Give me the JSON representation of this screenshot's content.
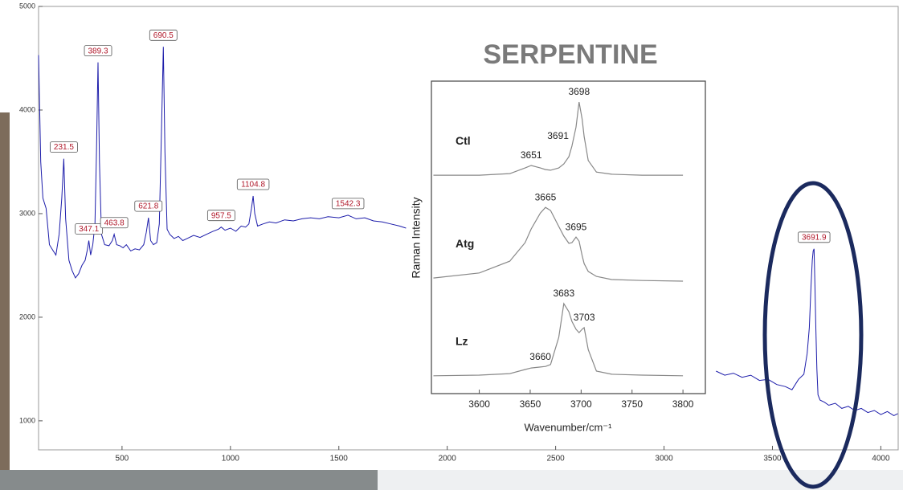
{
  "chart_data": [
    {
      "type": "line",
      "x": [
        115,
        125,
        135,
        150,
        165,
        180,
        195,
        210,
        222,
        231.5,
        240,
        255,
        270,
        285,
        300,
        315,
        330,
        340,
        347.1,
        355,
        365,
        375,
        382,
        389.3,
        396,
        405,
        420,
        440,
        455,
        463.8,
        475,
        490,
        505,
        520,
        540,
        560,
        580,
        600,
        612,
        621.8,
        632,
        645,
        660,
        672,
        682,
        690.5,
        698,
        708,
        720,
        740,
        760,
        780,
        800,
        830,
        860,
        890,
        920,
        945,
        957.5,
        975,
        1000,
        1025,
        1050,
        1070,
        1085,
        1097,
        1104.8,
        1112,
        1125,
        1150,
        1180,
        1210,
        1250,
        1290,
        1330,
        1370,
        1410,
        1450,
        1500,
        1542.3,
        1580,
        1620,
        1660,
        1700,
        1740,
        1780,
        1810,
        2500,
        3240,
        3280,
        3320,
        3360,
        3400,
        3440,
        3480,
        3520,
        3560,
        3590,
        3620,
        3645,
        3660,
        3670,
        3678,
        3684,
        3688,
        3691.9,
        3696,
        3700,
        3705,
        3710,
        3720,
        3740,
        3760,
        3790,
        3820,
        3850,
        3880,
        3910,
        3940,
        3970,
        4000,
        4030,
        4060,
        4078
      ],
      "series": [
        {
          "color": "#1c1caa",
          "values": [
            4530,
            3500,
            3150,
            3050,
            2700,
            2650,
            2600,
            2800,
            3150,
            3530,
            2950,
            2550,
            2450,
            2380,
            2420,
            2500,
            2550,
            2650,
            2740,
            2600,
            2700,
            2900,
            3600,
            4460,
            3500,
            2800,
            2700,
            2690,
            2740,
            2800,
            2700,
            2690,
            2670,
            2700,
            2640,
            2660,
            2650,
            2700,
            2820,
            2960,
            2740,
            2700,
            2720,
            2900,
            3800,
            4610,
            3600,
            2850,
            2800,
            2760,
            2780,
            2740,
            2760,
            2790,
            2770,
            2800,
            2830,
            2850,
            2870,
            2840,
            2860,
            2830,
            2880,
            2870,
            2900,
            3050,
            3170,
            3000,
            2880,
            2900,
            2920,
            2910,
            2940,
            2930,
            2950,
            2960,
            2950,
            2970,
            2960,
            2985,
            2950,
            2960,
            2930,
            2920,
            2900,
            2880,
            2860,
            null,
            1480,
            1440,
            1460,
            1420,
            1440,
            1390,
            1400,
            1350,
            1330,
            1300,
            1400,
            1450,
            1650,
            1900,
            2300,
            2550,
            2640,
            2660,
            2300,
            1900,
            1500,
            1250,
            1200,
            1180,
            1150,
            1170,
            1120,
            1140,
            1100,
            1120,
            1080,
            1100,
            1060,
            1090,
            1050,
            1070
          ]
        }
      ],
      "annotations": [
        231.5,
        347.1,
        389.3,
        463.8,
        621.8,
        690.5,
        957.5,
        1104.8,
        1542.3,
        3691.9
      ],
      "xlim": [
        115,
        4080
      ],
      "ylim": [
        720,
        5000
      ],
      "xticks": [
        500,
        1000,
        1500,
        2000,
        2500,
        3000,
        3500,
        4000
      ],
      "yticks": [
        1000,
        2000,
        3000,
        4000,
        5000
      ]
    },
    {
      "type": "line",
      "title": "SERPENTINE",
      "xlabel": "Wavenumber/cm⁻¹",
      "ylabel": "Raman Intensity",
      "x": [
        3555,
        3600,
        3630,
        3645,
        3651,
        3660,
        3665,
        3670,
        3678,
        3683,
        3688,
        3691,
        3695,
        3698,
        3701,
        3703,
        3707,
        3715,
        3730,
        3760,
        3800
      ],
      "series": [
        {
          "name": "Ctl",
          "color": "#888888",
          "peaks": [
            3651,
            3691,
            3698
          ],
          "values": [
            69.9,
            69.9,
            70.4,
            72.2,
            73.0,
            72.2,
            71.7,
            71.5,
            72.2,
            73.5,
            75.8,
            79.2,
            85.3,
            93.3,
            87.9,
            82.3,
            74.6,
            70.9,
            70.2,
            69.9,
            69.9
          ]
        },
        {
          "name": "Atg",
          "color": "#888888",
          "peaks": [
            3665,
            3695
          ],
          "values": [
            37.0,
            38.6,
            42.4,
            48.3,
            52.7,
            57.8,
            59.6,
            58.6,
            53.5,
            50.4,
            48.1,
            48.3,
            50.1,
            48.8,
            44.2,
            41.6,
            39.1,
            37.5,
            36.5,
            36.2,
            36.0
          ]
        },
        {
          "name": "Lz",
          "color": "#888888",
          "peaks": [
            3660,
            3683,
            3703
          ],
          "values": [
            5.7,
            5.9,
            6.4,
            7.7,
            8.2,
            8.5,
            8.7,
            9.3,
            18.0,
            28.8,
            26.2,
            23.1,
            20.6,
            19.5,
            20.6,
            21.1,
            14.1,
            7.2,
            6.2,
            5.9,
            5.7
          ]
        }
      ],
      "xlim": [
        3553,
        3822
      ],
      "ylim": [
        0,
        100
      ],
      "xticks": [
        3600,
        3650,
        3700,
        3750,
        3800
      ]
    }
  ]
}
